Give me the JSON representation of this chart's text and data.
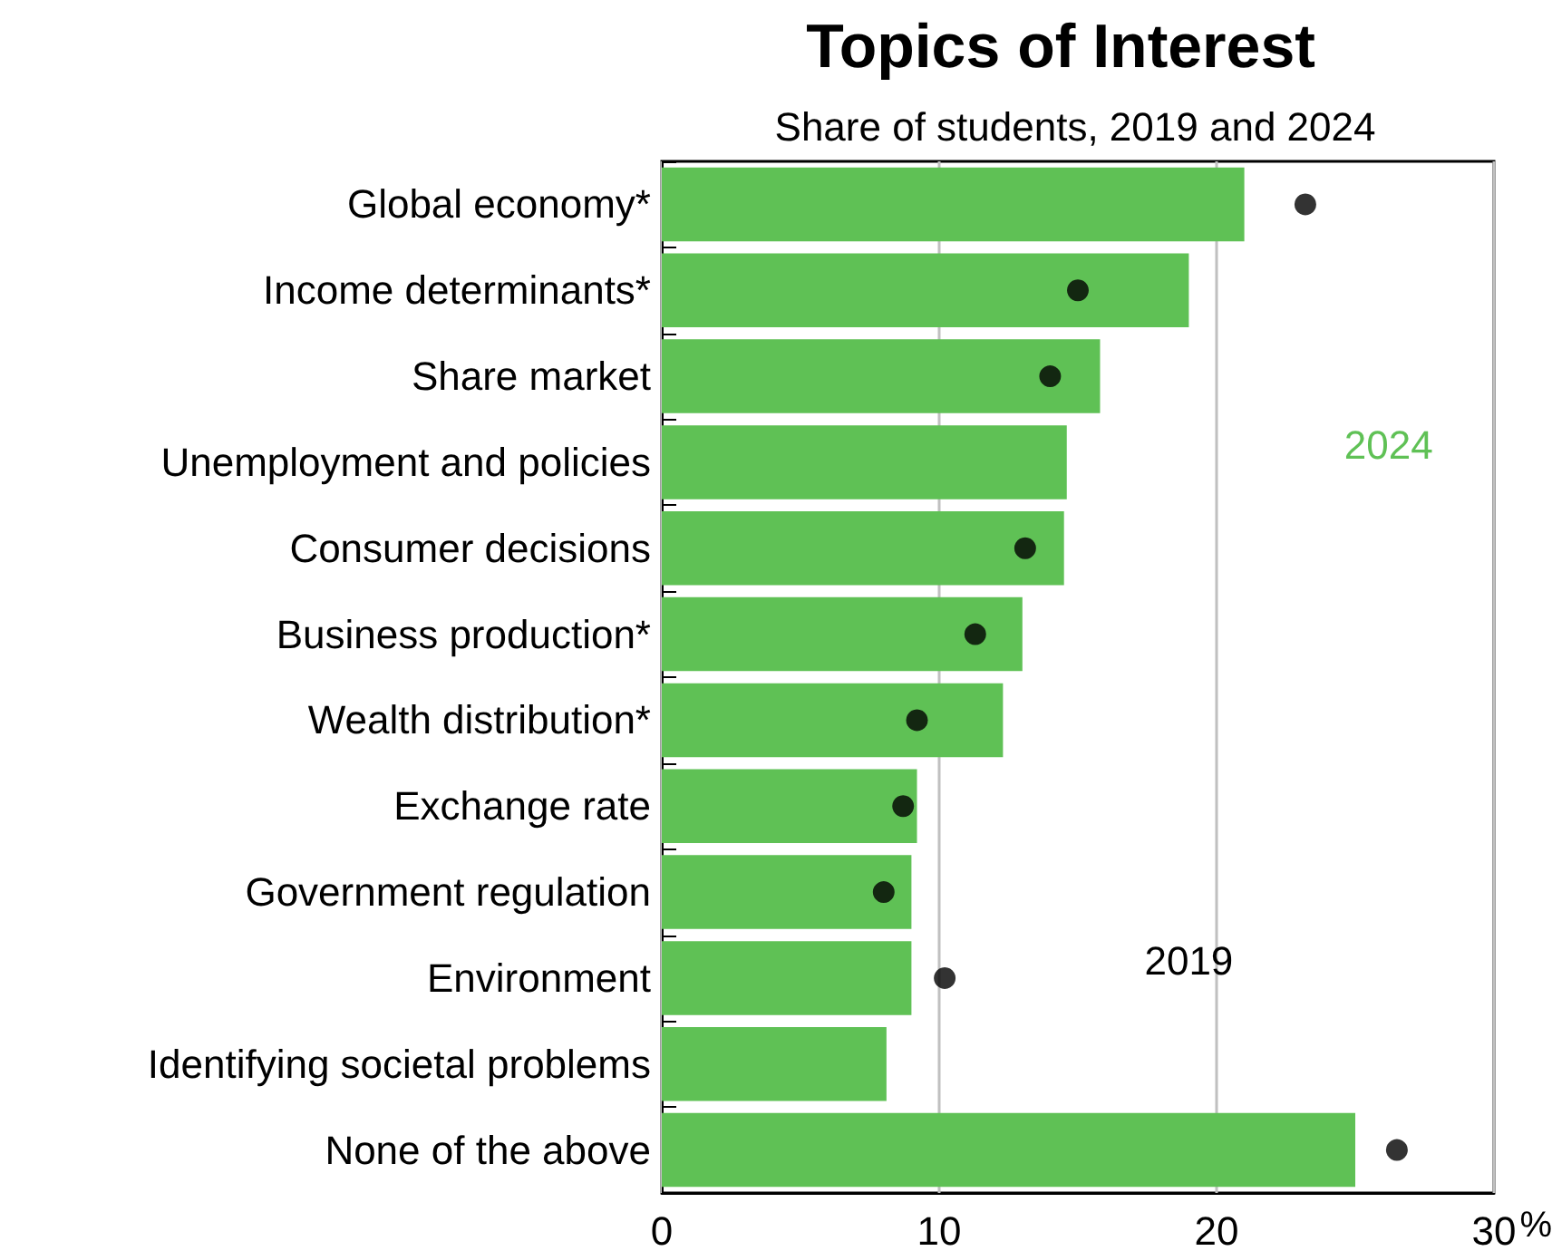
{
  "chart_data": {
    "type": "bar",
    "title": "Topics of Interest",
    "subtitle": "Share of students, 2019 and 2024",
    "xlabel": "%",
    "orientation": "horizontal",
    "categories": [
      "Global economy*",
      "Income determinants*",
      "Share market",
      "Unemployment and policies",
      "Consumer decisions",
      "Business production*",
      "Wealth distribution*",
      "Exchange rate",
      "Government regulation",
      "Environment",
      "Identifying societal problems",
      "None of the above"
    ],
    "series": [
      {
        "name": "2024",
        "color": "#5fc155",
        "values": [
          21.0,
          19.0,
          15.8,
          14.6,
          14.5,
          13.0,
          12.3,
          9.2,
          9.0,
          9.0,
          8.1,
          25.0
        ]
      },
      {
        "name": "2019",
        "type": "scatter",
        "color": "#000000",
        "values": [
          23.2,
          15.0,
          14.0,
          null,
          13.1,
          11.3,
          9.2,
          8.7,
          8.0,
          10.2,
          null,
          26.5
        ]
      }
    ],
    "xlim": [
      0,
      30
    ],
    "xticks": [
      0,
      10,
      20,
      30
    ],
    "grid": "x",
    "legend": false,
    "marker": "circle"
  }
}
